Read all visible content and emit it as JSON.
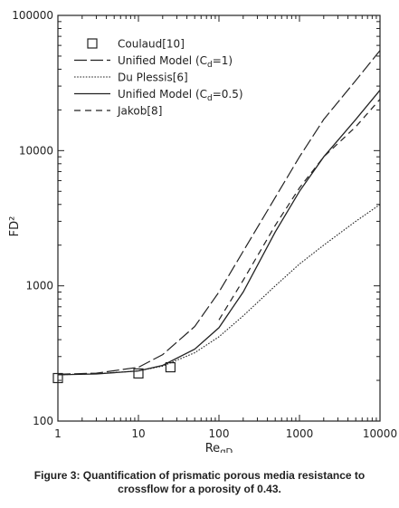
{
  "chart_data": {
    "type": "line",
    "x_scale": "log",
    "y_scale": "log",
    "xlim": [
      1,
      10000
    ],
    "ylim": [
      100,
      100000
    ],
    "xlabel_main": "Re",
    "xlabel_sub": "qD",
    "ylabel": "FD²",
    "x_ticks": [
      {
        "value": 1,
        "label": "1"
      },
      {
        "value": 10,
        "label": "10"
      },
      {
        "value": 100,
        "label": "100"
      },
      {
        "value": 1000,
        "label": "1000"
      },
      {
        "value": 10000,
        "label": "10000"
      }
    ],
    "y_ticks": [
      {
        "value": 100,
        "label": "100"
      },
      {
        "value": 1000,
        "label": "1000"
      },
      {
        "value": 10000,
        "label": "10000"
      },
      {
        "value": 100000,
        "label": "100000"
      }
    ],
    "grid": false,
    "legend_position": "top-left",
    "series": [
      {
        "name": "Coulaud[10]",
        "style": "markers",
        "marker": "square",
        "points": [
          [
            1,
            208
          ],
          [
            10,
            225
          ],
          [
            25,
            250
          ]
        ]
      },
      {
        "name": "Unified Model (C",
        "name_sub": "d",
        "name_tail": "=1)",
        "style": "longdash",
        "points": [
          [
            1,
            222
          ],
          [
            3,
            226
          ],
          [
            10,
            250
          ],
          [
            20,
            310
          ],
          [
            50,
            500
          ],
          [
            100,
            900
          ],
          [
            200,
            1800
          ],
          [
            500,
            4500
          ],
          [
            1000,
            9000
          ],
          [
            2000,
            17000
          ],
          [
            5000,
            33000
          ],
          [
            10000,
            55000
          ]
        ]
      },
      {
        "name": "Du Plessis[6]",
        "style": "dotted",
        "points": [
          [
            1,
            220
          ],
          [
            3,
            224
          ],
          [
            10,
            235
          ],
          [
            20,
            255
          ],
          [
            50,
            320
          ],
          [
            100,
            420
          ],
          [
            200,
            600
          ],
          [
            500,
            1000
          ],
          [
            1000,
            1450
          ],
          [
            2000,
            2000
          ],
          [
            5000,
            3000
          ],
          [
            10000,
            4000
          ]
        ]
      },
      {
        "name": "Unified Model (C",
        "name_sub": "d",
        "name_tail": "=0.5)",
        "style": "solid",
        "points": [
          [
            1,
            220
          ],
          [
            3,
            223
          ],
          [
            10,
            235
          ],
          [
            20,
            258
          ],
          [
            50,
            340
          ],
          [
            100,
            490
          ],
          [
            200,
            900
          ],
          [
            500,
            2500
          ],
          [
            1000,
            5000
          ],
          [
            2000,
            9000
          ],
          [
            5000,
            17000
          ],
          [
            10000,
            28000
          ]
        ]
      },
      {
        "name": "Jakob[8]",
        "style": "dashed",
        "points": [
          [
            100,
            560
          ],
          [
            200,
            1100
          ],
          [
            500,
            2800
          ],
          [
            1000,
            5300
          ],
          [
            2000,
            9000
          ],
          [
            5000,
            15000
          ],
          [
            10000,
            24000
          ]
        ]
      }
    ]
  },
  "caption": {
    "line1": "Figure 3: Quantification of prismatic porous media resistance to",
    "line2": "crossflow for a porosity of 0.43."
  }
}
